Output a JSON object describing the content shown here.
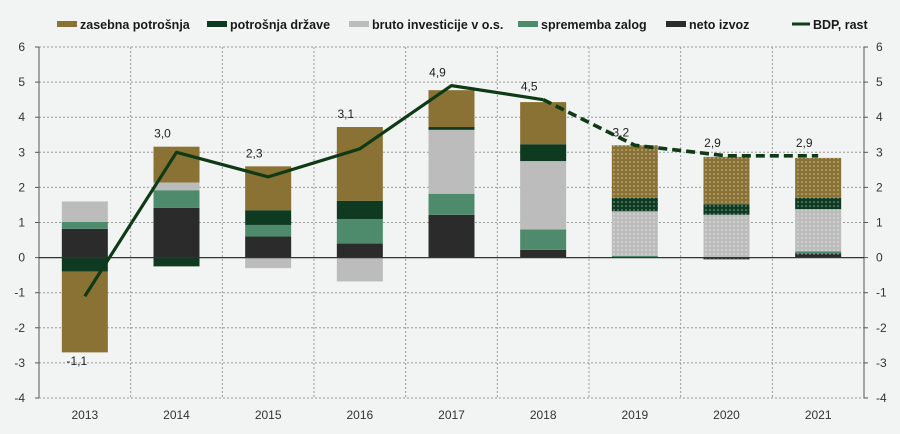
{
  "chart_data": {
    "type": "bar",
    "stacked": true,
    "title": "",
    "xlabel": "",
    "ylabel": "",
    "ylim": [
      -4,
      6
    ],
    "y_ticks": [
      -4,
      -3,
      -2,
      -1,
      0,
      1,
      2,
      3,
      4,
      5,
      6
    ],
    "y2_ticks": [
      -4,
      -3,
      -2,
      -1,
      0,
      1,
      2,
      3,
      4,
      5,
      6
    ],
    "grid": true,
    "legend_position": "top",
    "categories": [
      "2013",
      "2014",
      "2015",
      "2016",
      "2017",
      "2018",
      "2019",
      "2020",
      "2021"
    ],
    "forecast_from_index": 6,
    "series": [
      {
        "name": "neto izvoz",
        "color": "#2b2b2b",
        "values": [
          0.82,
          1.42,
          0.6,
          0.4,
          1.22,
          0.22,
          0.0,
          -0.05,
          0.12
        ]
      },
      {
        "name": "spremememba zalog",
        "color": "#4d8b6c",
        "values": [
          0.2,
          0.5,
          0.33,
          0.7,
          0.6,
          0.58,
          0.05,
          0.0,
          0.06
        ]
      },
      {
        "name": "bruto investicije v o.s.",
        "color": "#bcbcbc",
        "values": [
          0.58,
          0.22,
          -0.3,
          -0.68,
          1.82,
          1.95,
          1.27,
          1.22,
          1.2
        ]
      },
      {
        "name": "potrošnja države",
        "color": "#0f3a22",
        "values": [
          -0.4,
          -0.25,
          0.42,
          0.52,
          0.08,
          0.48,
          0.38,
          0.3,
          0.32
        ]
      },
      {
        "name": "zasebna potrošnja",
        "color": "#8a7134",
        "values": [
          -2.3,
          1.02,
          1.25,
          2.1,
          1.05,
          1.2,
          1.5,
          1.35,
          1.14
        ]
      }
    ],
    "line": {
      "name": "BDP, rast",
      "color": "#0f3a16",
      "values": [
        -1.1,
        3.0,
        2.3,
        3.1,
        4.9,
        4.5,
        3.2,
        2.9,
        2.9
      ],
      "labels": [
        "-1,1",
        "3,0",
        "2,3",
        "3,1",
        "4,9",
        "4,5",
        "3,2",
        "2,9",
        "2,9"
      ]
    },
    "legend": [
      {
        "label": "zasebna potrošnja",
        "color": "#8a7134",
        "kind": "bar"
      },
      {
        "label": "potrošnja države",
        "color": "#0f3a22",
        "kind": "bar"
      },
      {
        "label": "bruto investicije v o.s.",
        "color": "#bcbcbc",
        "kind": "bar"
      },
      {
        "label": "sprememba zalog",
        "color": "#4d8b6c",
        "kind": "bar"
      },
      {
        "label": "neto izvoz",
        "color": "#2b2b2b",
        "kind": "bar"
      },
      {
        "label": "BDP, rast",
        "color": "#0f3a16",
        "kind": "line"
      }
    ]
  }
}
